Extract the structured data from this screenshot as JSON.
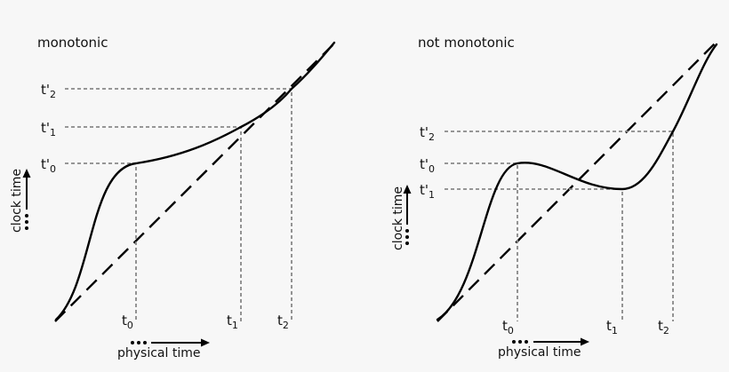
{
  "panels": [
    {
      "title": "monotonic",
      "x_axis_label": "physical time",
      "y_axis_label": "clock time",
      "x_ticks": [
        {
          "base": "t",
          "sub": "0"
        },
        {
          "base": "t",
          "sub": "1"
        },
        {
          "base": "t",
          "sub": "2"
        }
      ],
      "y_ticks": [
        {
          "base": "t'",
          "sub": "2"
        },
        {
          "base": "t'",
          "sub": "1"
        },
        {
          "base": "t'",
          "sub": "0"
        }
      ]
    },
    {
      "title": "not monotonic",
      "x_axis_label": "physical time",
      "y_axis_label": "clock time",
      "x_ticks": [
        {
          "base": "t",
          "sub": "0"
        },
        {
          "base": "t",
          "sub": "1"
        },
        {
          "base": "t",
          "sub": "2"
        }
      ],
      "y_ticks": [
        {
          "base": "t'",
          "sub": "2"
        },
        {
          "base": "t'",
          "sub": "0"
        },
        {
          "base": "t'",
          "sub": "1"
        }
      ]
    }
  ]
}
